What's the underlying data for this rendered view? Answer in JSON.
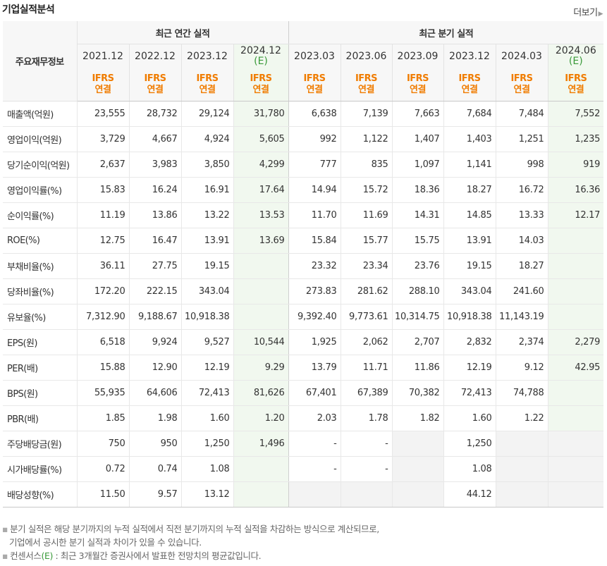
{
  "title": "기업실적분석",
  "more_label": "더보기",
  "header": {
    "row_label": "주요재무정보",
    "annual_group": "최근 연간 실적",
    "quarter_group": "최근 분기 실적",
    "ifrs_line1": "IFRS",
    "ifrs_line2": "연결",
    "annual_periods": [
      "2021.12",
      "2022.12",
      "2023.12",
      "2024.12"
    ],
    "quarter_periods": [
      "2023.03",
      "2023.06",
      "2023.09",
      "2023.12",
      "2024.03",
      "2024.06"
    ],
    "estimate_mark": "(E)"
  },
  "rows": [
    {
      "label": "매출액(억원)",
      "values": [
        "23,555",
        "28,732",
        "29,124",
        "31,780",
        "6,638",
        "7,139",
        "7,663",
        "7,684",
        "7,484",
        "7,552"
      ]
    },
    {
      "label": "영업이익(억원)",
      "values": [
        "3,729",
        "4,667",
        "4,924",
        "5,605",
        "992",
        "1,122",
        "1,407",
        "1,403",
        "1,251",
        "1,235"
      ]
    },
    {
      "label": "당기순이익(억원)",
      "values": [
        "2,637",
        "3,983",
        "3,850",
        "4,299",
        "777",
        "835",
        "1,097",
        "1,141",
        "998",
        "919"
      ]
    },
    {
      "label": "영업이익률(%)",
      "values": [
        "15.83",
        "16.24",
        "16.91",
        "17.64",
        "14.94",
        "15.72",
        "18.36",
        "18.27",
        "16.72",
        "16.36"
      ]
    },
    {
      "label": "순이익률(%)",
      "values": [
        "11.19",
        "13.86",
        "13.22",
        "13.53",
        "11.70",
        "11.69",
        "14.31",
        "14.85",
        "13.33",
        "12.17"
      ]
    },
    {
      "label": "ROE(%)",
      "values": [
        "12.75",
        "16.47",
        "13.91",
        "13.69",
        "15.84",
        "15.77",
        "15.75",
        "13.91",
        "14.03",
        ""
      ]
    },
    {
      "label": "부채비율(%)",
      "values": [
        "36.11",
        "27.75",
        "19.15",
        "",
        "23.32",
        "23.34",
        "23.76",
        "19.15",
        "18.27",
        ""
      ]
    },
    {
      "label": "당좌비율(%)",
      "values": [
        "172.20",
        "222.15",
        "343.04",
        "",
        "273.83",
        "281.62",
        "288.10",
        "343.04",
        "241.60",
        ""
      ]
    },
    {
      "label": "유보율(%)",
      "values": [
        "7,312.90",
        "9,188.67",
        "10,918.38",
        "",
        "9,392.40",
        "9,773.61",
        "10,314.75",
        "10,918.38",
        "11,143.19",
        ""
      ]
    },
    {
      "label": "EPS(원)",
      "values": [
        "6,518",
        "9,924",
        "9,527",
        "10,544",
        "1,925",
        "2,062",
        "2,707",
        "2,832",
        "2,374",
        "2,279"
      ]
    },
    {
      "label": "PER(배)",
      "values": [
        "15.88",
        "12.90",
        "12.19",
        "9.29",
        "13.79",
        "11.71",
        "11.86",
        "12.19",
        "9.12",
        "42.95"
      ]
    },
    {
      "label": "BPS(원)",
      "values": [
        "55,935",
        "64,606",
        "72,413",
        "81,626",
        "67,401",
        "67,389",
        "70,382",
        "72,413",
        "74,788",
        ""
      ]
    },
    {
      "label": "PBR(배)",
      "values": [
        "1.85",
        "1.98",
        "1.60",
        "1.20",
        "2.03",
        "1.78",
        "1.82",
        "1.60",
        "1.22",
        ""
      ]
    },
    {
      "label": "주당배당금(원)",
      "values": [
        "750",
        "950",
        "1,250",
        "1,496",
        "-",
        "-",
        "",
        "1,250",
        "",
        ""
      ]
    },
    {
      "label": "시가배당률(%)",
      "values": [
        "0.72",
        "0.74",
        "1.08",
        "",
        "-",
        "-",
        "",
        "1.08",
        "",
        ""
      ]
    },
    {
      "label": "배당성향(%)",
      "values": [
        "11.50",
        "9.57",
        "13.12",
        "",
        "",
        "",
        "",
        "44.12",
        "",
        ""
      ]
    }
  ],
  "notes": {
    "line1": "분기 실적은 해당 분기까지의 누적 실적에서 직전 분기까지의 누적 실적을 차감하는 방식으로 계산되므로,",
    "line2": "기업에서 공시한 분기 실적과 차이가 있을 수 있습니다.",
    "line3_prefix": "컨센서스",
    "line3_mark": "(E)",
    "line3_suffix": " : 최근 3개월간 증권사에서 발표한 전망치의 평균값입니다.",
    "bullet": "▪"
  },
  "colors": {
    "ifrs": "#f07c00",
    "estimate_bg": "#f1f8ef",
    "estimate_mark": "#3a9a3a",
    "gray_cell": "#f3f3f3"
  }
}
